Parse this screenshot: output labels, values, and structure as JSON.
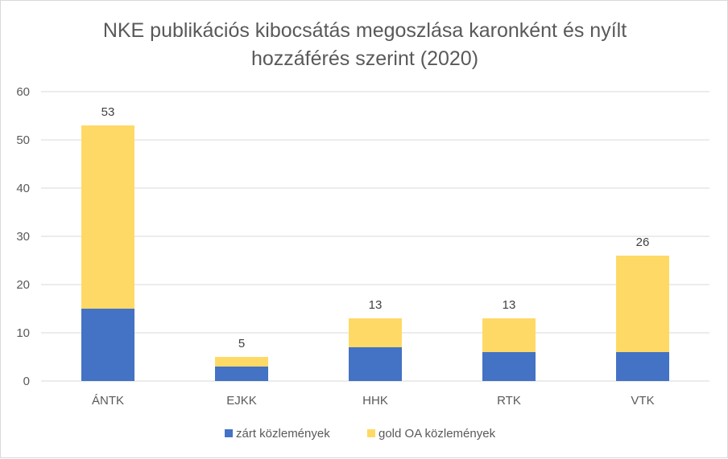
{
  "chart_data": {
    "type": "bar",
    "stacked": true,
    "title_lines": [
      "NKE publikációs kibocsátás megoszlása karonként és nyílt",
      "hozzáférés szerint (2020)"
    ],
    "categories": [
      "ÁNTK",
      "EJKK",
      "HHK",
      "RTK",
      "VTK"
    ],
    "series": [
      {
        "name": "zárt közlemények",
        "values": [
          15,
          3,
          7,
          6,
          6
        ],
        "color": "#4472c4"
      },
      {
        "name": "gold OA közlemények",
        "values": [
          38,
          2,
          6,
          7,
          20
        ],
        "color": "#ffd966"
      }
    ],
    "totals": [
      53,
      5,
      13,
      13,
      26
    ],
    "ylim": [
      0,
      60
    ],
    "yticks": [
      0,
      10,
      20,
      30,
      40,
      50,
      60
    ],
    "grid": true,
    "legend_position": "bottom",
    "colors": {
      "gridline": "#d9d9d9",
      "text": "#595959"
    }
  }
}
